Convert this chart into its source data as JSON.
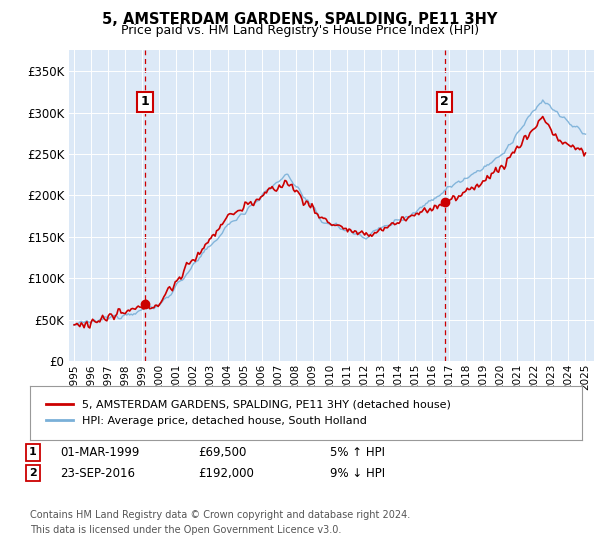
{
  "title": "5, AMSTERDAM GARDENS, SPALDING, PE11 3HY",
  "subtitle": "Price paid vs. HM Land Registry's House Price Index (HPI)",
  "plot_bg_color": "#dce9f7",
  "ylim": [
    0,
    375000
  ],
  "yticks": [
    0,
    50000,
    100000,
    150000,
    200000,
    250000,
    300000,
    350000
  ],
  "ytick_labels": [
    "£0",
    "£50K",
    "£100K",
    "£150K",
    "£200K",
    "£250K",
    "£300K",
    "£350K"
  ],
  "sale1": {
    "date_x": 1999.17,
    "price": 69500,
    "label": "1"
  },
  "sale2": {
    "date_x": 2016.73,
    "price": 192000,
    "label": "2"
  },
  "legend_line1": "5, AMSTERDAM GARDENS, SPALDING, PE11 3HY (detached house)",
  "legend_line2": "HPI: Average price, detached house, South Holland",
  "footer_line1": "Contains HM Land Registry data © Crown copyright and database right 2024.",
  "footer_line2": "This data is licensed under the Open Government Licence v3.0.",
  "table": [
    {
      "num": "1",
      "date": "01-MAR-1999",
      "price": "£69,500",
      "hpi": "5% ↑ HPI"
    },
    {
      "num": "2",
      "date": "23-SEP-2016",
      "price": "£192,000",
      "hpi": "9% ↓ HPI"
    }
  ],
  "red_line_color": "#cc0000",
  "blue_line_color": "#7ab0d8",
  "vline_color": "#cc0000",
  "annotation_box_color": "#cc0000",
  "xlim_left": 1994.7,
  "xlim_right": 2025.5
}
